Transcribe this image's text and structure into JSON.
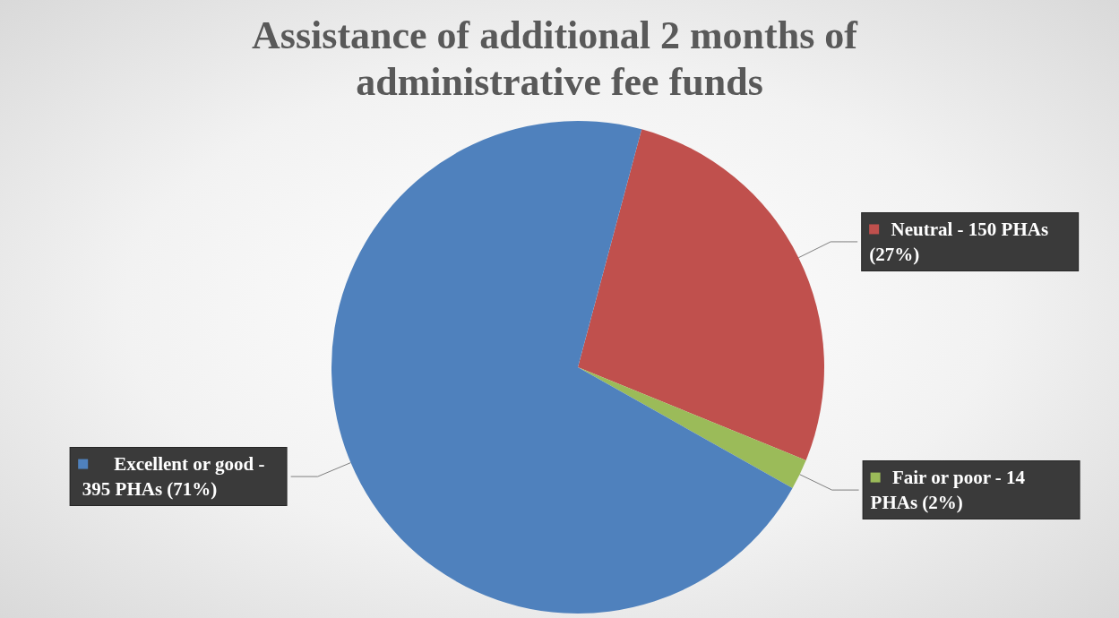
{
  "chart_data": {
    "type": "pie",
    "title": "Assistance of additional 2 months of administrative fee funds",
    "categories": [
      "Neutral - 150 PHAs (27%)",
      "Fair or poor - 14 PHAs (2%)",
      "Excellent or good - 395 PHAs (71%)"
    ],
    "values": [
      27,
      2,
      71
    ],
    "colors": [
      "#c0504d",
      "#9bbb59",
      "#4f81bd"
    ],
    "legend": "right"
  }
}
